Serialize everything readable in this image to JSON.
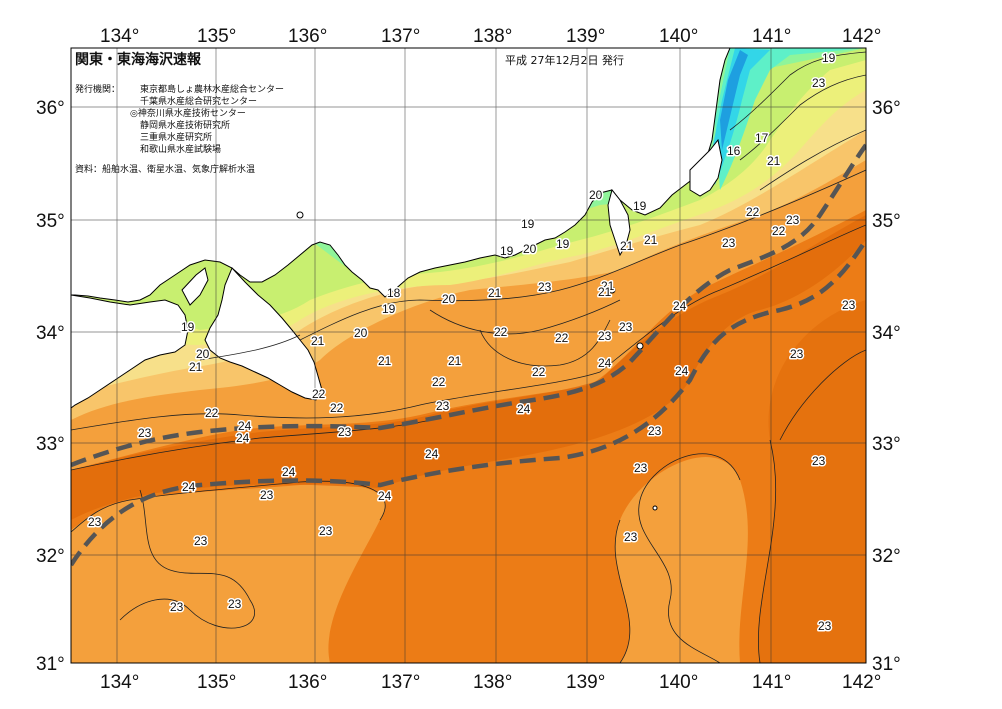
{
  "title": "関東・東海海沢速報",
  "date": "平成 27年12月2日 発行",
  "publisher_label": "発行機関：",
  "publishers": [
    "東京都島しょ農林水産総合センター",
    "千葉県水産総合研究センター",
    "◎神奈川県水産技術センター",
    "静岡県水産技術研究所",
    "三重県水産研究所",
    "和歌山県水産試験場"
  ],
  "source": "資料：船舶水温、衛星水温、気象庁解析水温",
  "lon_labels": [
    "134°",
    "135°",
    "136°",
    "137°",
    "138°",
    "139°",
    "140°",
    "141°",
    "142°"
  ],
  "lat_labels": [
    "36°",
    "35°",
    "34°",
    "33°",
    "32°",
    "31°"
  ],
  "isotherm_labels": [
    {
      "t": "19"
    },
    {
      "t": "23"
    },
    {
      "t": "17"
    },
    {
      "t": "16"
    },
    {
      "t": "21"
    },
    {
      "t": "22"
    },
    {
      "t": "23"
    },
    {
      "t": "22"
    },
    {
      "t": "20"
    },
    {
      "t": "19"
    },
    {
      "t": "21"
    },
    {
      "t": "19"
    },
    {
      "t": "20"
    },
    {
      "t": "19"
    },
    {
      "t": "19"
    },
    {
      "t": "21"
    },
    {
      "t": "21"
    },
    {
      "t": "23"
    },
    {
      "t": "18"
    },
    {
      "t": "19"
    },
    {
      "t": "20"
    },
    {
      "t": "21"
    },
    {
      "t": "23"
    },
    {
      "t": "21"
    },
    {
      "t": "24"
    },
    {
      "t": "23"
    },
    {
      "t": "23"
    },
    {
      "t": "22"
    },
    {
      "t": "22"
    },
    {
      "t": "23"
    },
    {
      "t": "24"
    },
    {
      "t": "21"
    },
    {
      "t": "19"
    },
    {
      "t": "20"
    },
    {
      "t": "21"
    },
    {
      "t": "20"
    },
    {
      "t": "21"
    },
    {
      "t": "21"
    },
    {
      "t": "22"
    },
    {
      "t": "22"
    },
    {
      "t": "24"
    },
    {
      "t": "22"
    },
    {
      "t": "22"
    },
    {
      "t": "23"
    },
    {
      "t": "22"
    },
    {
      "t": "23"
    },
    {
      "t": "24"
    },
    {
      "t": "24"
    },
    {
      "t": "23"
    },
    {
      "t": "23"
    },
    {
      "t": "24"
    },
    {
      "t": "23"
    },
    {
      "t": "24"
    },
    {
      "t": "24"
    },
    {
      "t": "24"
    },
    {
      "t": "23"
    },
    {
      "t": "24"
    },
    {
      "t": "23"
    },
    {
      "t": "23"
    },
    {
      "t": "23"
    },
    {
      "t": "23"
    },
    {
      "t": "23"
    },
    {
      "t": "23"
    },
    {
      "t": "23"
    },
    {
      "t": "23"
    }
  ],
  "colors": {
    "land": "#ffffff",
    "t_15": "#1e9fe0",
    "t_16": "#33d6e8",
    "t_17": "#5ef0c8",
    "t_18": "#8ff59a",
    "t_19": "#c8ef70",
    "t_20": "#ecf07a",
    "t_21": "#f7e08a",
    "t_22": "#f8c56a",
    "t_23": "#f4a03c",
    "t_24": "#ec7c16",
    "t_25": "#e06a0a",
    "kuroshio": "#555555"
  }
}
